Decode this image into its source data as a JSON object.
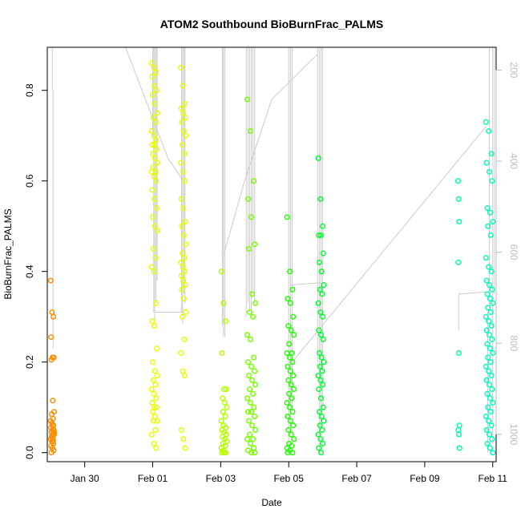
{
  "chart_data": {
    "type": "scatter",
    "title": "ATOM2 Southbound BioBurnFrac_PALMS",
    "xlabel": "Date",
    "ylabel": "BioBurnFrac_PALMS",
    "x_unit": "days after Jan 30",
    "xlim": [
      -1.1,
      12.1
    ],
    "ylim": [
      -0.02,
      0.895
    ],
    "x_ticks": [
      {
        "value": 0,
        "label": "Jan 30"
      },
      {
        "value": 2,
        "label": "Feb 01"
      },
      {
        "value": 4,
        "label": "Feb 03"
      },
      {
        "value": 6,
        "label": "Feb 05"
      },
      {
        "value": 8,
        "label": "Feb 07"
      },
      {
        "value": 10,
        "label": "Feb 09"
      },
      {
        "value": 12,
        "label": "Feb 11"
      }
    ],
    "y_ticks": [
      {
        "value": 0.0,
        "label": "0.0"
      },
      {
        "value": 0.2,
        "label": "0.2"
      },
      {
        "value": 0.4,
        "label": "0.4"
      },
      {
        "value": 0.6,
        "label": "0.6"
      },
      {
        "value": 0.8,
        "label": "0.8"
      }
    ],
    "right_axis": {
      "reversed": true,
      "range": [
        1060,
        150
      ],
      "ticks": [
        {
          "value": 200,
          "label": "200"
        },
        {
          "value": 400,
          "label": "400"
        },
        {
          "value": 600,
          "label": "600"
        },
        {
          "value": 800,
          "label": "800"
        },
        {
          "value": 1000,
          "label": "1000"
        }
      ]
    },
    "marker_colors": {
      "jan29": "#ff8c00",
      "feb01": "#e6ff00",
      "feb03": "#b3ff00",
      "feb04": "#77ff00",
      "feb05": "#22ff00",
      "feb06": "#00ff33",
      "feb10": "#00ffaa",
      "feb11": "#00ffbb"
    },
    "profile_color": "#cccccc",
    "clusters": [
      {
        "name": "jan29",
        "x": -0.95,
        "spread": 0.05,
        "values": [
          0.38,
          0.31,
          0.3,
          0.255,
          0.21,
          0.21,
          0.205,
          0.115,
          0.09,
          0.085,
          0.075,
          0.07,
          0.065,
          0.06,
          0.055,
          0.05,
          0.05,
          0.045,
          0.04,
          0.04,
          0.035,
          0.03,
          0.03,
          0.025,
          0.02,
          0.015,
          0.01,
          0.005,
          0.0,
          0.06,
          0.045,
          0.035,
          0.025
        ]
      },
      {
        "name": "feb01",
        "x": 2.05,
        "spread": 0.08,
        "values": [
          0.86,
          0.85,
          0.84,
          0.83,
          0.81,
          0.8,
          0.79,
          0.77,
          0.75,
          0.74,
          0.73,
          0.71,
          0.7,
          0.69,
          0.68,
          0.68,
          0.67,
          0.66,
          0.65,
          0.64,
          0.63,
          0.62,
          0.62,
          0.61,
          0.6,
          0.58,
          0.56,
          0.54,
          0.52,
          0.5,
          0.49,
          0.45,
          0.43,
          0.41,
          0.4,
          0.33,
          0.29,
          0.28,
          0.23,
          0.2,
          0.18,
          0.17,
          0.16,
          0.15,
          0.14,
          0.13,
          0.12,
          0.11,
          0.1,
          0.1,
          0.09,
          0.08,
          0.07,
          0.07,
          0.05,
          0.04,
          0.02,
          0.01
        ]
      },
      {
        "name": "feb01b",
        "x": 2.9,
        "spread": 0.07,
        "color_key": "feb01",
        "values": [
          0.85,
          0.81,
          0.77,
          0.76,
          0.75,
          0.74,
          0.73,
          0.71,
          0.7,
          0.68,
          0.66,
          0.64,
          0.62,
          0.6,
          0.56,
          0.54,
          0.51,
          0.5,
          0.48,
          0.46,
          0.44,
          0.43,
          0.42,
          0.41,
          0.4,
          0.39,
          0.38,
          0.37,
          0.36,
          0.34,
          0.31,
          0.3,
          0.25,
          0.22,
          0.18,
          0.17,
          0.05,
          0.03,
          0.01
        ]
      },
      {
        "name": "feb03",
        "x": 4.1,
        "spread": 0.08,
        "values": [
          0.4,
          0.33,
          0.29,
          0.22,
          0.14,
          0.14,
          0.12,
          0.11,
          0.1,
          0.09,
          0.08,
          0.07,
          0.06,
          0.055,
          0.05,
          0.045,
          0.04,
          0.035,
          0.03,
          0.025,
          0.02,
          0.015,
          0.01,
          0.005,
          0.0,
          0.0,
          0.0
        ]
      },
      {
        "name": "feb04",
        "x": 4.9,
        "spread": 0.12,
        "values": [
          0.78,
          0.71,
          0.6,
          0.56,
          0.52,
          0.46,
          0.45,
          0.35,
          0.33,
          0.31,
          0.3,
          0.26,
          0.25,
          0.21,
          0.2,
          0.19,
          0.18,
          0.17,
          0.16,
          0.15,
          0.14,
          0.13,
          0.12,
          0.11,
          0.1,
          0.09,
          0.09,
          0.08,
          0.07,
          0.06,
          0.05,
          0.04,
          0.03,
          0.03,
          0.02,
          0.01,
          0.005,
          0.0,
          0.0
        ]
      },
      {
        "name": "feb05",
        "x": 6.05,
        "spread": 0.1,
        "values": [
          0.52,
          0.4,
          0.36,
          0.34,
          0.33,
          0.3,
          0.28,
          0.27,
          0.26,
          0.24,
          0.22,
          0.22,
          0.21,
          0.2,
          0.19,
          0.18,
          0.17,
          0.16,
          0.15,
          0.14,
          0.13,
          0.12,
          0.11,
          0.1,
          0.09,
          0.08,
          0.07,
          0.06,
          0.05,
          0.04,
          0.03,
          0.02,
          0.015,
          0.01,
          0.005,
          0.0,
          0.0
        ]
      },
      {
        "name": "feb06",
        "x": 6.95,
        "spread": 0.08,
        "values": [
          0.65,
          0.56,
          0.5,
          0.48,
          0.48,
          0.44,
          0.42,
          0.4,
          0.37,
          0.36,
          0.35,
          0.33,
          0.31,
          0.3,
          0.27,
          0.26,
          0.25,
          0.22,
          0.21,
          0.2,
          0.19,
          0.18,
          0.17,
          0.16,
          0.15,
          0.14,
          0.12,
          0.1,
          0.09,
          0.08,
          0.07,
          0.06,
          0.05,
          0.04,
          0.03,
          0.02,
          0.01,
          0.0
        ]
      },
      {
        "name": "feb10",
        "x": 11.0,
        "spread": 0.02,
        "values": [
          0.6,
          0.56,
          0.51,
          0.42,
          0.22,
          0.06,
          0.05,
          0.04,
          0.01
        ]
      },
      {
        "name": "feb11",
        "x": 11.9,
        "spread": 0.1,
        "values": [
          0.73,
          0.71,
          0.66,
          0.64,
          0.62,
          0.6,
          0.54,
          0.53,
          0.51,
          0.5,
          0.48,
          0.43,
          0.41,
          0.4,
          0.38,
          0.37,
          0.36,
          0.35,
          0.34,
          0.33,
          0.32,
          0.31,
          0.3,
          0.29,
          0.28,
          0.27,
          0.26,
          0.25,
          0.24,
          0.23,
          0.22,
          0.21,
          0.2,
          0.19,
          0.18,
          0.17,
          0.16,
          0.15,
          0.14,
          0.13,
          0.12,
          0.11,
          0.1,
          0.09,
          0.08,
          0.07,
          0.06,
          0.05,
          0.04,
          0.03,
          0.02,
          0.01,
          0.0
        ]
      }
    ],
    "profile_verticals": [
      {
        "x": -0.95,
        "y0": 0.8,
        "y1": 0.895
      },
      {
        "x": -0.93,
        "y0": 0.23,
        "y1": 0.8
      },
      {
        "x": 2.0,
        "y0": 0.7,
        "y1": 0.895
      },
      {
        "x": 2.03,
        "y0": 0.31,
        "y1": 0.895
      },
      {
        "x": 2.06,
        "y0": 0.29,
        "y1": 0.895
      },
      {
        "x": 2.1,
        "y0": 0.33,
        "y1": 0.895
      },
      {
        "x": 2.13,
        "y0": 0.38,
        "y1": 0.895
      },
      {
        "x": 2.85,
        "y0": 0.31,
        "y1": 0.895
      },
      {
        "x": 2.88,
        "y0": 0.285,
        "y1": 0.895
      },
      {
        "x": 2.92,
        "y0": 0.35,
        "y1": 0.895
      },
      {
        "x": 2.95,
        "y0": 0.33,
        "y1": 0.895
      },
      {
        "x": 4.05,
        "y0": 0.28,
        "y1": 0.895
      },
      {
        "x": 4.08,
        "y0": 0.255,
        "y1": 0.895
      },
      {
        "x": 4.12,
        "y0": 0.255,
        "y1": 0.895
      },
      {
        "x": 4.75,
        "y0": 0.3,
        "y1": 0.895
      },
      {
        "x": 4.8,
        "y0": 0.33,
        "y1": 0.895
      },
      {
        "x": 4.85,
        "y0": 0.31,
        "y1": 0.895
      },
      {
        "x": 4.9,
        "y0": 0.3,
        "y1": 0.895
      },
      {
        "x": 4.95,
        "y0": 0.35,
        "y1": 0.895
      },
      {
        "x": 5.0,
        "y0": 0.33,
        "y1": 0.895
      },
      {
        "x": 6.0,
        "y0": 0.0,
        "y1": 0.895
      },
      {
        "x": 6.05,
        "y0": 0.05,
        "y1": 0.895
      },
      {
        "x": 6.1,
        "y0": 0.1,
        "y1": 0.895
      },
      {
        "x": 6.85,
        "y0": 0.2,
        "y1": 0.895
      },
      {
        "x": 6.9,
        "y0": 0.0,
        "y1": 0.895
      },
      {
        "x": 6.95,
        "y0": 0.05,
        "y1": 0.895
      },
      {
        "x": 7.0,
        "y0": 0.1,
        "y1": 0.895
      },
      {
        "x": 11.9,
        "y0": 0.32,
        "y1": 0.895
      },
      {
        "x": 11.85,
        "y0": 0.0,
        "y1": 0.31
      },
      {
        "x": 12.0,
        "y0": 0.02,
        "y1": 0.895
      },
      {
        "x": 12.05,
        "y0": 0.35,
        "y1": 0.895
      }
    ],
    "profile_lines": [
      [
        [
          1.2,
          0.895
        ],
        [
          2.45,
          0.65
        ],
        [
          2.9,
          0.6
        ]
      ],
      [
        [
          2.05,
          0.31
        ],
        [
          2.9,
          0.31
        ]
      ],
      [
        [
          4.1,
          0.44
        ],
        [
          4.7,
          0.6
        ],
        [
          5.5,
          0.78
        ],
        [
          6.85,
          0.88
        ]
      ],
      [
        [
          6.05,
          0.37
        ],
        [
          6.95,
          0.375
        ]
      ],
      [
        [
          6.1,
          0.2
        ],
        [
          11.8,
          0.72
        ]
      ],
      [
        [
          11.0,
          0.27
        ],
        [
          11.0,
          0.35
        ],
        [
          11.85,
          0.355
        ]
      ]
    ]
  }
}
